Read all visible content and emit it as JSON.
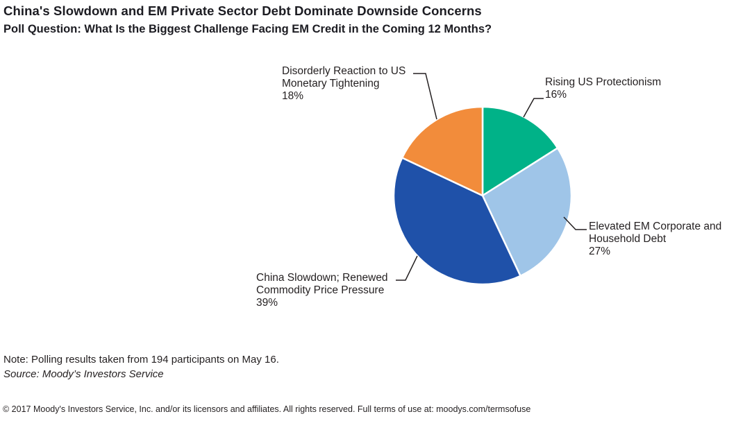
{
  "header": {
    "title": "China's Slowdown and EM Private Sector Debt Dominate Downside Concerns",
    "subtitle": "Poll Question: What Is the Biggest Challenge Facing EM Credit in the Coming 12 Months?"
  },
  "chart_data": {
    "type": "pie",
    "title": "China's Slowdown and EM Private Sector Debt Dominate Downside Concerns",
    "subtitle": "Poll Question: What Is the Biggest Challenge Facing EM Credit in the Coming 12 Months?",
    "start_angle_deg": -90,
    "direction": "clockwise",
    "slices": [
      {
        "label": "Rising US Protectionism",
        "value": 16,
        "pct_label": "16%",
        "color": "#00B288"
      },
      {
        "label": "Elevated EM Corporate and Household Debt",
        "value": 27,
        "pct_label": "27%",
        "color": "#9FC5E8"
      },
      {
        "label": "China Slowdown; Renewed Commodity Price Pressure",
        "value": 39,
        "pct_label": "39%",
        "color": "#1F51A9"
      },
      {
        "label": "Disorderly Reaction to US Monetary Tightening",
        "value": 18,
        "pct_label": "18%",
        "color": "#F28C3B"
      }
    ]
  },
  "notes": {
    "note": "Note: Polling results taken from 194 participants on May 16.",
    "source": "Source: Moody’s Investors Service"
  },
  "footer": {
    "copyright": "© 2017 Moody's Investors Service, Inc. and/or its licensors and affiliates. All rights reserved. Full terms of use at: moodys.com/termsofuse"
  }
}
